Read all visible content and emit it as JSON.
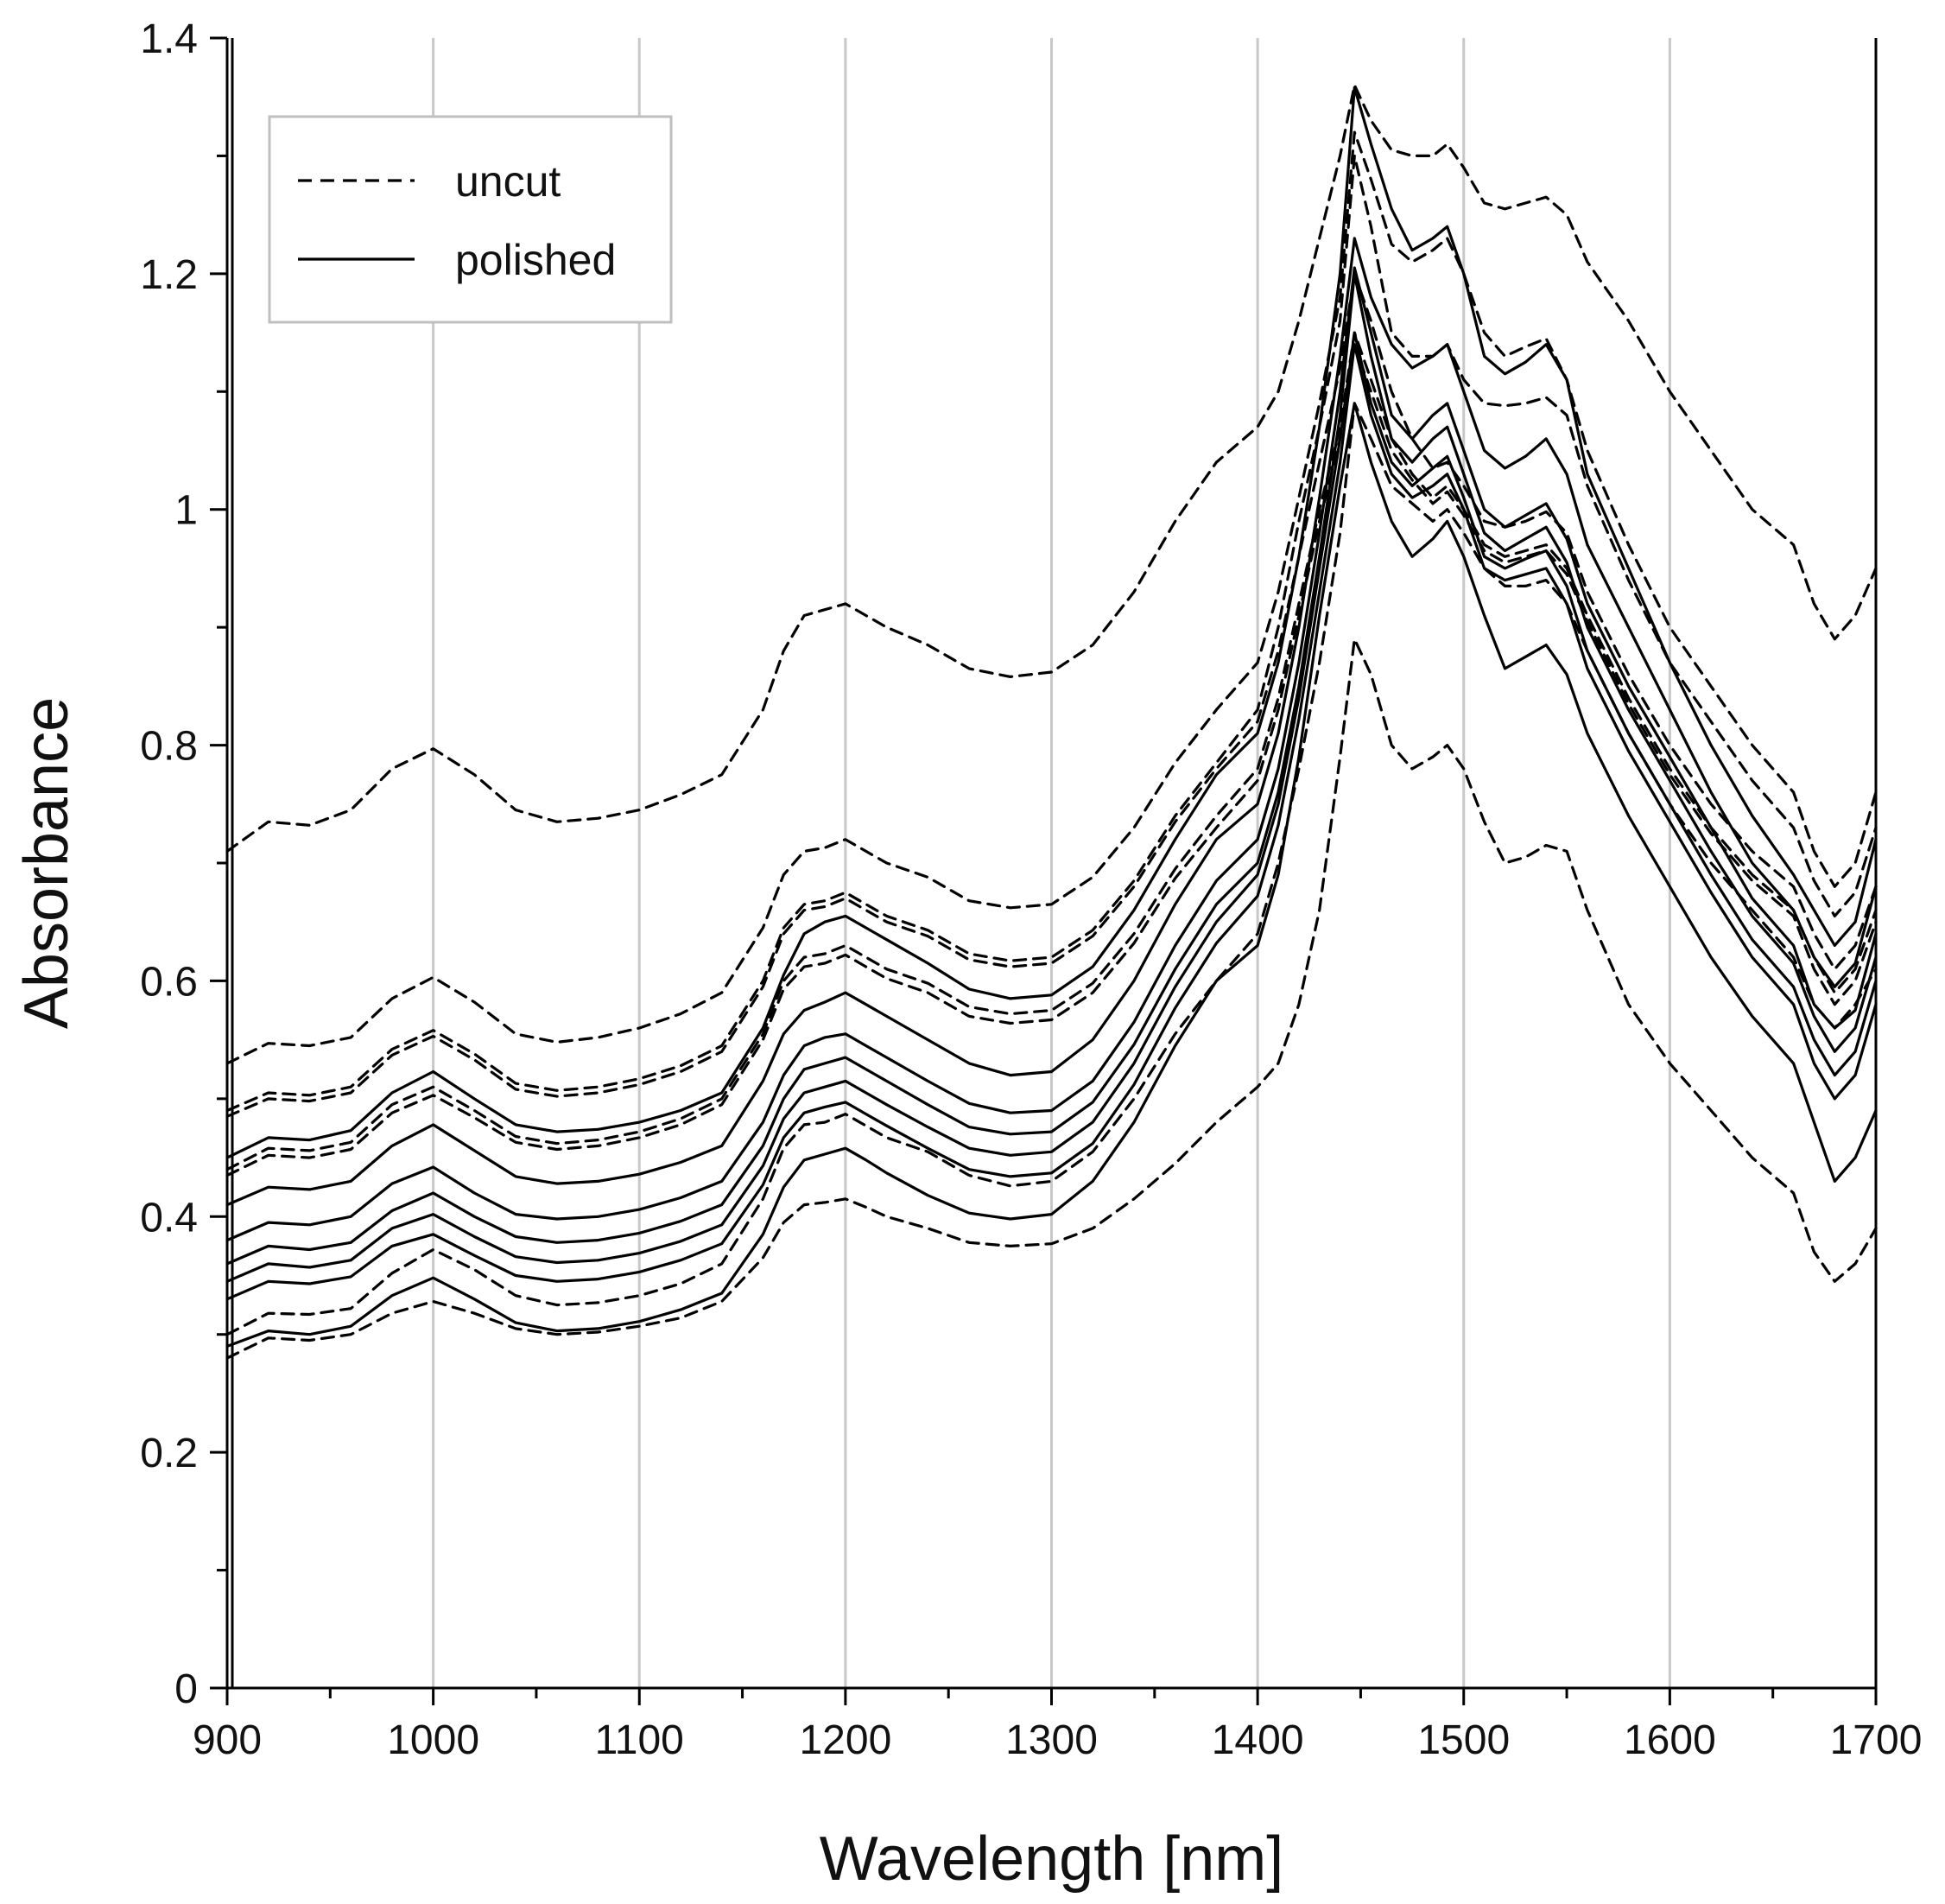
{
  "chart_data": {
    "type": "line",
    "title": "",
    "xlabel": "Wavelength [nm]",
    "ylabel": "Absorbance",
    "xlim": [
      900,
      1700
    ],
    "ylim": [
      0,
      1.4
    ],
    "x_ticks": [
      900,
      1000,
      1100,
      1200,
      1300,
      1400,
      1500,
      1600,
      1700
    ],
    "x_tick_labels": [
      "900",
      "1000",
      "1100",
      "1200",
      "1300",
      "1400",
      "1500",
      "1600",
      "1700"
    ],
    "y_ticks": [
      0,
      0.2,
      0.4,
      0.6,
      0.8,
      1.0,
      1.2,
      1.4
    ],
    "y_tick_labels": [
      "0",
      "0.2",
      "0.4",
      "0.6",
      "0.8",
      "1",
      "1.2",
      "1.4"
    ],
    "grid": "vertical",
    "legend": {
      "position": "top-left",
      "entries": [
        {
          "label": "uncut",
          "style": "dashed"
        },
        {
          "label": "polished",
          "style": "solid"
        }
      ]
    },
    "x": [
      900,
      920,
      940,
      960,
      980,
      1000,
      1020,
      1040,
      1060,
      1080,
      1100,
      1120,
      1140,
      1160,
      1170,
      1180,
      1190,
      1200,
      1210,
      1220,
      1240,
      1260,
      1280,
      1300,
      1320,
      1340,
      1360,
      1380,
      1400,
      1410,
      1420,
      1430,
      1440,
      1447,
      1455,
      1465,
      1475,
      1485,
      1492,
      1500,
      1510,
      1520,
      1530,
      1540,
      1550,
      1560,
      1580,
      1600,
      1620,
      1640,
      1660,
      1670,
      1680,
      1690,
      1700
    ],
    "series": [
      {
        "name": "uncut",
        "style": "dashed",
        "values": [
          0.71,
          0.735,
          0.732,
          0.745,
          0.78,
          0.797,
          0.775,
          0.745,
          0.735,
          0.738,
          0.745,
          0.758,
          0.775,
          0.83,
          0.88,
          0.91,
          0.915,
          0.92,
          0.91,
          0.9,
          0.885,
          0.865,
          0.858,
          0.862,
          0.885,
          0.93,
          0.99,
          1.04,
          1.07,
          1.1,
          1.16,
          1.23,
          1.3,
          1.36,
          1.33,
          1.305,
          1.3,
          1.3,
          1.31,
          1.29,
          1.26,
          1.255,
          1.26,
          1.265,
          1.25,
          1.21,
          1.16,
          1.1,
          1.05,
          1.0,
          0.97,
          0.92,
          0.89,
          0.91,
          0.95
        ]
      },
      {
        "name": "uncut",
        "style": "dashed",
        "values": [
          0.53,
          0.547,
          0.545,
          0.552,
          0.585,
          0.603,
          0.582,
          0.555,
          0.548,
          0.552,
          0.56,
          0.572,
          0.59,
          0.645,
          0.69,
          0.71,
          0.713,
          0.72,
          0.71,
          0.7,
          0.688,
          0.668,
          0.662,
          0.665,
          0.688,
          0.73,
          0.785,
          0.83,
          0.87,
          0.93,
          1.01,
          1.09,
          1.18,
          1.32,
          1.28,
          1.225,
          1.21,
          1.22,
          1.23,
          1.2,
          1.15,
          1.13,
          1.138,
          1.145,
          1.11,
          1.05,
          0.97,
          0.9,
          0.85,
          0.8,
          0.76,
          0.71,
          0.68,
          0.7,
          0.76
        ]
      },
      {
        "name": "uncut",
        "style": "dashed",
        "values": [
          0.49,
          0.505,
          0.503,
          0.51,
          0.542,
          0.558,
          0.538,
          0.513,
          0.507,
          0.51,
          0.517,
          0.528,
          0.545,
          0.6,
          0.645,
          0.665,
          0.668,
          0.675,
          0.665,
          0.655,
          0.643,
          0.623,
          0.617,
          0.62,
          0.643,
          0.685,
          0.74,
          0.785,
          0.83,
          0.9,
          0.99,
          1.07,
          1.16,
          1.3,
          1.24,
          1.15,
          1.13,
          1.13,
          1.14,
          1.11,
          1.09,
          1.088,
          1.09,
          1.095,
          1.08,
          1.02,
          0.94,
          0.87,
          0.82,
          0.77,
          0.73,
          0.685,
          0.655,
          0.675,
          0.73
        ]
      },
      {
        "name": "uncut",
        "style": "dashed",
        "values": [
          0.485,
          0.5,
          0.498,
          0.505,
          0.537,
          0.553,
          0.533,
          0.508,
          0.502,
          0.505,
          0.512,
          0.523,
          0.54,
          0.595,
          0.64,
          0.66,
          0.663,
          0.67,
          0.66,
          0.65,
          0.638,
          0.618,
          0.612,
          0.615,
          0.638,
          0.68,
          0.735,
          0.78,
          0.82,
          0.88,
          0.96,
          1.04,
          1.12,
          1.2,
          1.16,
          1.1,
          1.06,
          1.035,
          1.04,
          1.02,
          0.99,
          0.985,
          0.99,
          0.998,
          0.98,
          0.93,
          0.86,
          0.8,
          0.75,
          0.71,
          0.68,
          0.64,
          0.61,
          0.63,
          0.68
        ]
      },
      {
        "name": "uncut",
        "style": "dashed",
        "values": [
          0.44,
          0.458,
          0.456,
          0.463,
          0.495,
          0.51,
          0.49,
          0.468,
          0.462,
          0.465,
          0.472,
          0.483,
          0.5,
          0.555,
          0.6,
          0.62,
          0.623,
          0.63,
          0.62,
          0.61,
          0.598,
          0.578,
          0.572,
          0.575,
          0.598,
          0.64,
          0.695,
          0.74,
          0.78,
          0.84,
          0.92,
          1.0,
          1.07,
          1.15,
          1.11,
          1.06,
          1.03,
          1.01,
          1.02,
          1.0,
          0.97,
          0.96,
          0.965,
          0.97,
          0.95,
          0.91,
          0.84,
          0.78,
          0.73,
          0.69,
          0.66,
          0.62,
          0.59,
          0.61,
          0.66
        ]
      },
      {
        "name": "uncut",
        "style": "dashed",
        "values": [
          0.435,
          0.452,
          0.45,
          0.457,
          0.488,
          0.503,
          0.484,
          0.463,
          0.457,
          0.46,
          0.467,
          0.478,
          0.495,
          0.55,
          0.593,
          0.612,
          0.615,
          0.622,
          0.612,
          0.602,
          0.59,
          0.57,
          0.564,
          0.567,
          0.59,
          0.632,
          0.687,
          0.73,
          0.77,
          0.83,
          0.91,
          0.99,
          1.06,
          1.14,
          1.1,
          1.05,
          1.025,
          1.005,
          1.015,
          0.995,
          0.965,
          0.955,
          0.96,
          0.965,
          0.945,
          0.905,
          0.835,
          0.775,
          0.725,
          0.685,
          0.655,
          0.61,
          0.58,
          0.6,
          0.65
        ]
      },
      {
        "name": "uncut",
        "style": "dashed",
        "values": [
          0.3,
          0.318,
          0.317,
          0.322,
          0.352,
          0.372,
          0.355,
          0.333,
          0.325,
          0.327,
          0.333,
          0.343,
          0.36,
          0.415,
          0.458,
          0.478,
          0.48,
          0.487,
          0.477,
          0.467,
          0.455,
          0.435,
          0.426,
          0.43,
          0.455,
          0.5,
          0.555,
          0.6,
          0.64,
          0.7,
          0.78,
          0.87,
          0.98,
          1.09,
          1.06,
          1.02,
          1.005,
          0.99,
          1.0,
          0.98,
          0.95,
          0.935,
          0.935,
          0.94,
          0.92,
          0.88,
          0.81,
          0.75,
          0.7,
          0.66,
          0.62,
          0.58,
          0.56,
          0.58,
          0.61
        ]
      },
      {
        "name": "uncut",
        "style": "dashed",
        "values": [
          0.28,
          0.297,
          0.295,
          0.3,
          0.318,
          0.328,
          0.318,
          0.305,
          0.3,
          0.302,
          0.307,
          0.314,
          0.328,
          0.365,
          0.395,
          0.41,
          0.412,
          0.415,
          0.408,
          0.4,
          0.39,
          0.378,
          0.375,
          0.377,
          0.39,
          0.415,
          0.445,
          0.48,
          0.51,
          0.53,
          0.58,
          0.66,
          0.79,
          0.89,
          0.86,
          0.8,
          0.78,
          0.79,
          0.8,
          0.78,
          0.735,
          0.7,
          0.705,
          0.715,
          0.71,
          0.66,
          0.58,
          0.53,
          0.49,
          0.45,
          0.42,
          0.37,
          0.345,
          0.36,
          0.39
        ]
      },
      {
        "name": "polished",
        "style": "solid",
        "values": [
          0.45,
          0.467,
          0.465,
          0.473,
          0.505,
          0.523,
          0.5,
          0.478,
          0.472,
          0.474,
          0.48,
          0.49,
          0.505,
          0.56,
          0.605,
          0.64,
          0.65,
          0.655,
          0.645,
          0.635,
          0.615,
          0.593,
          0.585,
          0.588,
          0.612,
          0.66,
          0.72,
          0.775,
          0.81,
          0.87,
          0.96,
          1.07,
          1.2,
          1.358,
          1.31,
          1.255,
          1.22,
          1.23,
          1.24,
          1.2,
          1.13,
          1.115,
          1.125,
          1.14,
          1.11,
          1.03,
          0.95,
          0.87,
          0.8,
          0.74,
          0.69,
          0.66,
          0.63,
          0.65,
          0.72
        ]
      },
      {
        "name": "polished",
        "style": "solid",
        "values": [
          0.41,
          0.425,
          0.423,
          0.43,
          0.46,
          0.478,
          0.456,
          0.434,
          0.428,
          0.43,
          0.436,
          0.446,
          0.46,
          0.515,
          0.555,
          0.575,
          0.582,
          0.59,
          0.58,
          0.57,
          0.55,
          0.53,
          0.52,
          0.523,
          0.55,
          0.6,
          0.665,
          0.72,
          0.75,
          0.81,
          0.9,
          1.01,
          1.13,
          1.23,
          1.18,
          1.14,
          1.12,
          1.13,
          1.14,
          1.1,
          1.05,
          1.035,
          1.045,
          1.06,
          1.03,
          0.97,
          0.9,
          0.83,
          0.76,
          0.7,
          0.66,
          0.62,
          0.595,
          0.615,
          0.68
        ]
      },
      {
        "name": "polished",
        "style": "solid",
        "values": [
          0.38,
          0.395,
          0.393,
          0.4,
          0.428,
          0.442,
          0.42,
          0.402,
          0.398,
          0.4,
          0.406,
          0.416,
          0.43,
          0.48,
          0.52,
          0.545,
          0.552,
          0.555,
          0.545,
          0.535,
          0.515,
          0.496,
          0.488,
          0.49,
          0.515,
          0.565,
          0.63,
          0.685,
          0.72,
          0.78,
          0.87,
          0.98,
          1.1,
          1.205,
          1.15,
          1.08,
          1.06,
          1.08,
          1.09,
          1.05,
          1.0,
          0.985,
          0.995,
          1.005,
          0.975,
          0.92,
          0.85,
          0.79,
          0.73,
          0.67,
          0.63,
          0.58,
          0.56,
          0.575,
          0.64
        ]
      },
      {
        "name": "polished",
        "style": "solid",
        "values": [
          0.36,
          0.375,
          0.372,
          0.378,
          0.405,
          0.42,
          0.4,
          0.383,
          0.378,
          0.38,
          0.386,
          0.396,
          0.41,
          0.46,
          0.5,
          0.525,
          0.53,
          0.535,
          0.525,
          0.515,
          0.495,
          0.476,
          0.47,
          0.472,
          0.497,
          0.546,
          0.61,
          0.665,
          0.7,
          0.76,
          0.85,
          0.96,
          1.08,
          1.2,
          1.13,
          1.06,
          1.04,
          1.06,
          1.07,
          1.03,
          0.98,
          0.965,
          0.975,
          0.985,
          0.955,
          0.9,
          0.83,
          0.77,
          0.71,
          0.655,
          0.615,
          0.57,
          0.54,
          0.56,
          0.62
        ]
      },
      {
        "name": "polished",
        "style": "solid",
        "values": [
          0.345,
          0.36,
          0.357,
          0.363,
          0.39,
          0.402,
          0.383,
          0.366,
          0.361,
          0.363,
          0.369,
          0.379,
          0.393,
          0.443,
          0.483,
          0.505,
          0.51,
          0.515,
          0.505,
          0.495,
          0.476,
          0.458,
          0.452,
          0.455,
          0.48,
          0.53,
          0.595,
          0.65,
          0.69,
          0.75,
          0.84,
          0.95,
          1.06,
          1.15,
          1.09,
          1.04,
          1.02,
          1.035,
          1.045,
          1.01,
          0.96,
          0.95,
          0.958,
          0.965,
          0.935,
          0.88,
          0.81,
          0.75,
          0.69,
          0.635,
          0.595,
          0.55,
          0.52,
          0.54,
          0.6
        ]
      },
      {
        "name": "polished",
        "style": "solid",
        "values": [
          0.33,
          0.345,
          0.343,
          0.349,
          0.375,
          0.385,
          0.367,
          0.35,
          0.345,
          0.347,
          0.353,
          0.363,
          0.377,
          0.427,
          0.467,
          0.488,
          0.493,
          0.497,
          0.487,
          0.477,
          0.458,
          0.44,
          0.434,
          0.437,
          0.462,
          0.512,
          0.577,
          0.632,
          0.672,
          0.732,
          0.822,
          0.93,
          1.04,
          1.14,
          1.08,
          1.03,
          1.01,
          1.02,
          1.03,
          1.0,
          0.95,
          0.94,
          0.945,
          0.95,
          0.92,
          0.865,
          0.795,
          0.735,
          0.675,
          0.62,
          0.58,
          0.53,
          0.5,
          0.52,
          0.58
        ]
      },
      {
        "name": "polished",
        "style": "solid",
        "values": [
          0.29,
          0.303,
          0.3,
          0.307,
          0.333,
          0.348,
          0.33,
          0.31,
          0.303,
          0.305,
          0.311,
          0.321,
          0.335,
          0.385,
          0.425,
          0.448,
          0.453,
          0.458,
          0.448,
          0.437,
          0.418,
          0.403,
          0.398,
          0.402,
          0.43,
          0.48,
          0.545,
          0.6,
          0.63,
          0.69,
          0.79,
          0.91,
          1.02,
          1.09,
          1.04,
          0.99,
          0.96,
          0.975,
          0.99,
          0.96,
          0.91,
          0.865,
          0.875,
          0.885,
          0.86,
          0.81,
          0.74,
          0.68,
          0.62,
          0.57,
          0.53,
          0.48,
          0.43,
          0.45,
          0.49
        ]
      }
    ]
  }
}
